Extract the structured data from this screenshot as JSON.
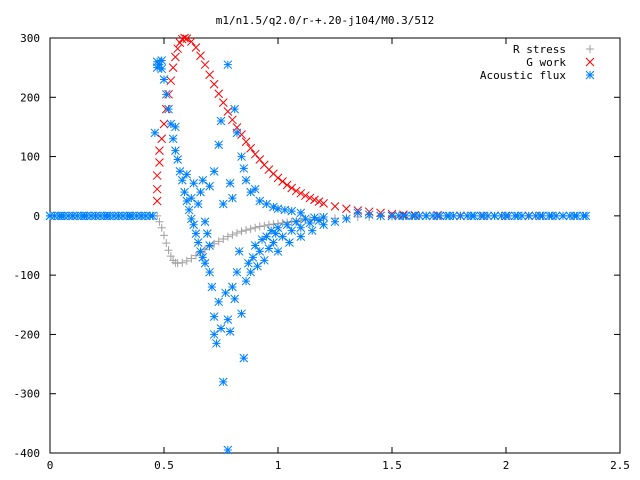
{
  "chart_data": {
    "type": "scatter",
    "title": "m1/n1.5/q2.0/r-+.20-j104/M0.3/512",
    "xlabel": "",
    "ylabel": "",
    "xlim": [
      0,
      2.5
    ],
    "ylim": [
      -400,
      300
    ],
    "xticks": [
      0,
      0.5,
      1,
      1.5,
      2,
      2.5
    ],
    "yticks": [
      -400,
      -300,
      -200,
      -100,
      0,
      100,
      200,
      300
    ],
    "xtick_labels": [
      "0",
      "0.5",
      "1",
      "1.5",
      "2",
      "2.5"
    ],
    "ytick_labels": [
      "-400",
      "-300",
      "-200",
      "-100",
      "0",
      "100",
      "200",
      "300"
    ],
    "grid": false,
    "legend_position": "top-right",
    "series": [
      {
        "name": "R stress",
        "marker": "plus",
        "color": "#a0a0a0",
        "points": [
          [
            0.47,
            0
          ],
          [
            0.48,
            -10
          ],
          [
            0.49,
            -20
          ],
          [
            0.5,
            -33
          ],
          [
            0.51,
            -46
          ],
          [
            0.52,
            -58
          ],
          [
            0.53,
            -68
          ],
          [
            0.54,
            -75
          ],
          [
            0.55,
            -79
          ],
          [
            0.56,
            -80
          ],
          [
            0.58,
            -79
          ],
          [
            0.6,
            -76
          ],
          [
            0.62,
            -72
          ],
          [
            0.64,
            -67
          ],
          [
            0.66,
            -62
          ],
          [
            0.68,
            -57
          ],
          [
            0.7,
            -52
          ],
          [
            0.72,
            -47
          ],
          [
            0.74,
            -43
          ],
          [
            0.76,
            -39
          ],
          [
            0.78,
            -35
          ],
          [
            0.8,
            -32
          ],
          [
            0.82,
            -29
          ],
          [
            0.84,
            -26
          ],
          [
            0.86,
            -24
          ],
          [
            0.88,
            -22
          ],
          [
            0.9,
            -20
          ],
          [
            0.92,
            -18
          ],
          [
            0.94,
            -17
          ],
          [
            0.96,
            -15
          ],
          [
            0.98,
            -14
          ],
          [
            1.0,
            -13
          ],
          [
            1.02,
            -12
          ],
          [
            1.04,
            -11
          ],
          [
            1.06,
            -10
          ],
          [
            1.08,
            -9
          ],
          [
            1.1,
            -8
          ],
          [
            1.12,
            -7
          ],
          [
            1.14,
            -7
          ],
          [
            1.16,
            -6
          ],
          [
            1.18,
            -5
          ],
          [
            1.2,
            -5
          ],
          [
            1.25,
            -4
          ],
          [
            1.3,
            -3
          ],
          [
            1.35,
            -2
          ],
          [
            1.4,
            -2
          ],
          [
            1.45,
            -1
          ],
          [
            1.5,
            -1
          ],
          [
            1.55,
            -1
          ],
          [
            1.6,
            0
          ],
          [
            1.7,
            0
          ],
          [
            1.8,
            0
          ],
          [
            1.9,
            0
          ],
          [
            2.0,
            0
          ],
          [
            2.1,
            0
          ]
        ]
      },
      {
        "name": "G work",
        "marker": "cross",
        "color": "#ff0000",
        "points": [
          [
            0.47,
            25
          ],
          [
            0.47,
            45
          ],
          [
            0.47,
            68
          ],
          [
            0.48,
            90
          ],
          [
            0.48,
            110
          ],
          [
            0.49,
            130
          ],
          [
            0.5,
            155
          ],
          [
            0.51,
            180
          ],
          [
            0.52,
            205
          ],
          [
            0.53,
            228
          ],
          [
            0.54,
            250
          ],
          [
            0.55,
            268
          ],
          [
            0.56,
            282
          ],
          [
            0.57,
            292
          ],
          [
            0.58,
            298
          ],
          [
            0.59,
            300
          ],
          [
            0.6,
            299
          ],
          [
            0.62,
            294
          ],
          [
            0.64,
            284
          ],
          [
            0.66,
            270
          ],
          [
            0.68,
            255
          ],
          [
            0.7,
            238
          ],
          [
            0.72,
            222
          ],
          [
            0.74,
            206
          ],
          [
            0.76,
            191
          ],
          [
            0.78,
            176
          ],
          [
            0.8,
            162
          ],
          [
            0.82,
            149
          ],
          [
            0.84,
            137
          ],
          [
            0.86,
            125
          ],
          [
            0.88,
            114
          ],
          [
            0.9,
            104
          ],
          [
            0.92,
            95
          ],
          [
            0.94,
            86
          ],
          [
            0.96,
            78
          ],
          [
            0.98,
            71
          ],
          [
            1.0,
            64
          ],
          [
            1.02,
            58
          ],
          [
            1.04,
            52
          ],
          [
            1.06,
            47
          ],
          [
            1.08,
            42
          ],
          [
            1.1,
            38
          ],
          [
            1.12,
            34
          ],
          [
            1.14,
            30
          ],
          [
            1.16,
            27
          ],
          [
            1.18,
            24
          ],
          [
            1.2,
            21
          ],
          [
            1.25,
            16
          ],
          [
            1.3,
            12
          ],
          [
            1.35,
            9
          ],
          [
            1.4,
            7
          ],
          [
            1.45,
            5
          ],
          [
            1.5,
            3
          ],
          [
            1.55,
            2
          ],
          [
            1.6,
            1
          ],
          [
            1.7,
            1
          ],
          [
            1.8,
            0
          ],
          [
            1.9,
            0
          ],
          [
            2.0,
            0
          ],
          [
            2.1,
            0
          ],
          [
            2.15,
            0
          ]
        ]
      },
      {
        "name": "Acoustic flux",
        "marker": "star",
        "color": "#0080ff",
        "points": [
          [
            0.0,
            0
          ],
          [
            0.05,
            0
          ],
          [
            0.1,
            0
          ],
          [
            0.15,
            0
          ],
          [
            0.2,
            0
          ],
          [
            0.25,
            0
          ],
          [
            0.3,
            0
          ],
          [
            0.35,
            0
          ],
          [
            0.4,
            0
          ],
          [
            0.45,
            0
          ],
          [
            0.46,
            140
          ],
          [
            0.47,
            250
          ],
          [
            0.47,
            260
          ],
          [
            0.48,
            255
          ],
          [
            0.49,
            248
          ],
          [
            0.49,
            262
          ],
          [
            0.5,
            230
          ],
          [
            0.51,
            205
          ],
          [
            0.52,
            180
          ],
          [
            0.53,
            155
          ],
          [
            0.54,
            130
          ],
          [
            0.55,
            110
          ],
          [
            0.56,
            95
          ],
          [
            0.57,
            75
          ],
          [
            0.58,
            60
          ],
          [
            0.59,
            40
          ],
          [
            0.6,
            25
          ],
          [
            0.61,
            10
          ],
          [
            0.62,
            -5
          ],
          [
            0.63,
            -15
          ],
          [
            0.64,
            -30
          ],
          [
            0.65,
            -45
          ],
          [
            0.66,
            -60
          ],
          [
            0.67,
            -70
          ],
          [
            0.68,
            -80
          ],
          [
            0.55,
            150
          ],
          [
            0.6,
            70
          ],
          [
            0.62,
            30
          ],
          [
            0.63,
            55
          ],
          [
            0.65,
            20
          ],
          [
            0.66,
            40
          ],
          [
            0.67,
            60
          ],
          [
            0.68,
            -10
          ],
          [
            0.69,
            -30
          ],
          [
            0.7,
            -50
          ],
          [
            0.7,
            -95
          ],
          [
            0.71,
            -120
          ],
          [
            0.72,
            -170
          ],
          [
            0.72,
            -200
          ],
          [
            0.73,
            -215
          ],
          [
            0.74,
            -145
          ],
          [
            0.75,
            -190
          ],
          [
            0.76,
            -280
          ],
          [
            0.77,
            -130
          ],
          [
            0.78,
            -175
          ],
          [
            0.79,
            -195
          ],
          [
            0.8,
            -120
          ],
          [
            0.81,
            -140
          ],
          [
            0.82,
            -95
          ],
          [
            0.83,
            -60
          ],
          [
            0.84,
            -165
          ],
          [
            0.85,
            -240
          ],
          [
            0.86,
            -110
          ],
          [
            0.87,
            -80
          ],
          [
            0.88,
            -95
          ],
          [
            0.89,
            -70
          ],
          [
            0.9,
            -50
          ],
          [
            0.91,
            -85
          ],
          [
            0.92,
            -60
          ],
          [
            0.93,
            -40
          ],
          [
            0.94,
            -75
          ],
          [
            0.95,
            -35
          ],
          [
            0.96,
            -55
          ],
          [
            0.97,
            -25
          ],
          [
            0.98,
            -45
          ],
          [
            0.99,
            -30
          ],
          [
            1.0,
            -20
          ],
          [
            1.02,
            -35
          ],
          [
            1.04,
            -15
          ],
          [
            1.06,
            -25
          ],
          [
            1.08,
            -10
          ],
          [
            1.1,
            -20
          ],
          [
            1.12,
            -5
          ],
          [
            1.14,
            -12
          ],
          [
            1.16,
            -3
          ],
          [
            1.18,
            -8
          ],
          [
            1.2,
            -2
          ],
          [
            0.7,
            50
          ],
          [
            0.72,
            75
          ],
          [
            0.74,
            120
          ],
          [
            0.75,
            160
          ],
          [
            0.76,
            20
          ],
          [
            0.78,
            255
          ],
          [
            0.79,
            55
          ],
          [
            0.8,
            30
          ],
          [
            0.81,
            180
          ],
          [
            0.82,
            140
          ],
          [
            0.84,
            100
          ],
          [
            0.85,
            80
          ],
          [
            0.86,
            60
          ],
          [
            0.88,
            40
          ],
          [
            0.9,
            45
          ],
          [
            0.92,
            25
          ],
          [
            0.95,
            20
          ],
          [
            0.98,
            15
          ],
          [
            1.0,
            12
          ],
          [
            1.03,
            10
          ],
          [
            1.06,
            8
          ],
          [
            1.1,
            5
          ],
          [
            0.78,
            -395
          ],
          [
            1.0,
            -60
          ],
          [
            1.05,
            -45
          ],
          [
            1.1,
            -35
          ],
          [
            1.15,
            -25
          ],
          [
            1.2,
            -15
          ],
          [
            1.25,
            -10
          ],
          [
            1.3,
            -5
          ],
          [
            1.35,
            5
          ],
          [
            1.4,
            2
          ],
          [
            1.45,
            0
          ],
          [
            1.5,
            0
          ],
          [
            1.55,
            0
          ],
          [
            1.6,
            0
          ],
          [
            1.65,
            0
          ],
          [
            1.7,
            0
          ],
          [
            1.75,
            0
          ],
          [
            1.8,
            0
          ],
          [
            1.85,
            0
          ],
          [
            1.9,
            0
          ],
          [
            1.95,
            0
          ],
          [
            2.0,
            0
          ],
          [
            2.05,
            0
          ],
          [
            2.1,
            0
          ],
          [
            2.15,
            0
          ],
          [
            2.2,
            0
          ],
          [
            2.25,
            0
          ],
          [
            2.3,
            0
          ],
          [
            2.35,
            0
          ]
        ]
      }
    ]
  }
}
